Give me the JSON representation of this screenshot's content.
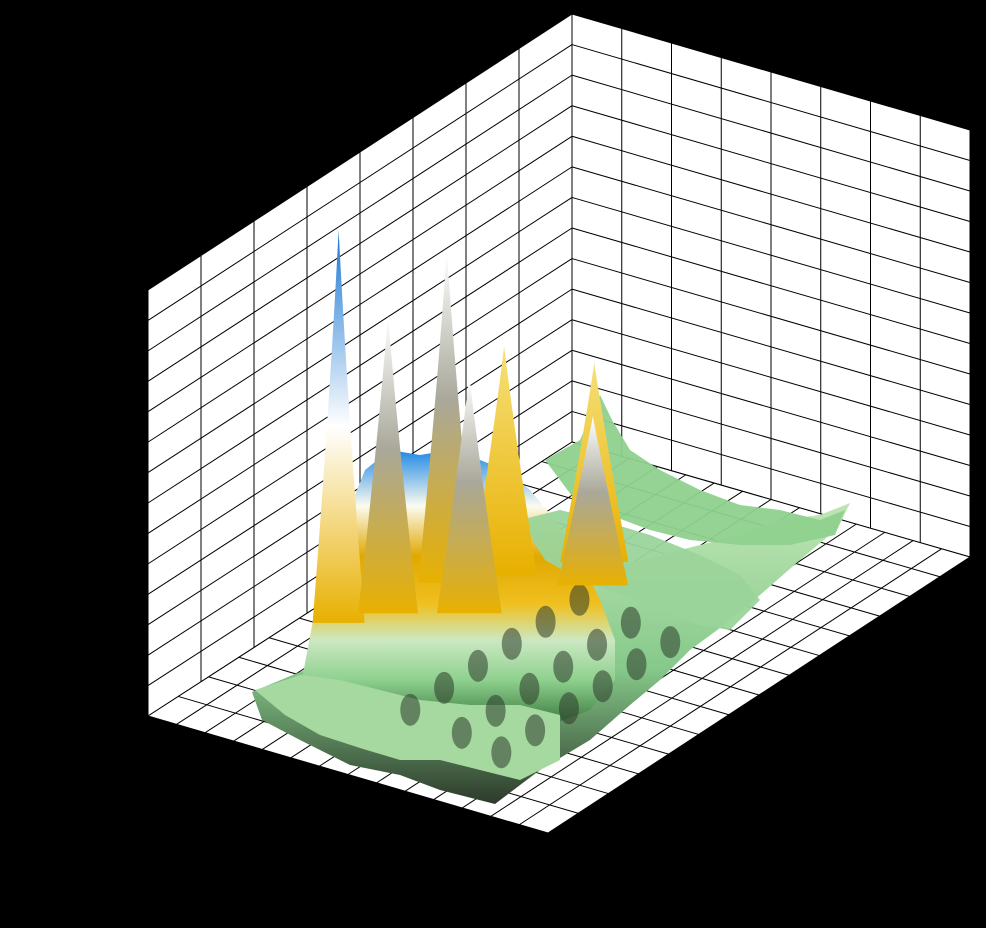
{
  "chart_data": {
    "type": "surface3d",
    "title": "",
    "xlabel": "",
    "ylabel": "",
    "zlabel": "",
    "grid": true,
    "axes_labels_visible": false,
    "background_color": "#000000",
    "panel_color": "#ffffff",
    "grid_color": "#000000",
    "colormap": [
      "#2e8b3a",
      "#8fd18f",
      "#d8f0d0",
      "#f0c020",
      "#e8a000",
      "#ffffff",
      "#1e88e5"
    ],
    "floor_grid": {
      "x_divisions": 14,
      "y_divisions": 14
    },
    "back_wall_grid": {
      "x_divisions": 8,
      "z_divisions": 14
    },
    "left_wall_grid": {
      "y_divisions": 8,
      "z_divisions": 14
    },
    "peaks": [
      {
        "x": 0.28,
        "y": 0.18,
        "z": 1.0,
        "color": "blue"
      },
      {
        "x": 0.34,
        "y": 0.24,
        "z": 0.78,
        "color": "white"
      },
      {
        "x": 0.46,
        "y": 0.26,
        "z": 0.86,
        "color": "white"
      },
      {
        "x": 0.52,
        "y": 0.34,
        "z": 0.62,
        "color": "gold"
      },
      {
        "x": 0.62,
        "y": 0.46,
        "z": 0.55,
        "color": "gold"
      },
      {
        "x": 0.4,
        "y": 0.38,
        "z": 0.64,
        "color": "gray"
      },
      {
        "x": 0.56,
        "y": 0.52,
        "z": 0.48,
        "color": "gray"
      }
    ]
  }
}
